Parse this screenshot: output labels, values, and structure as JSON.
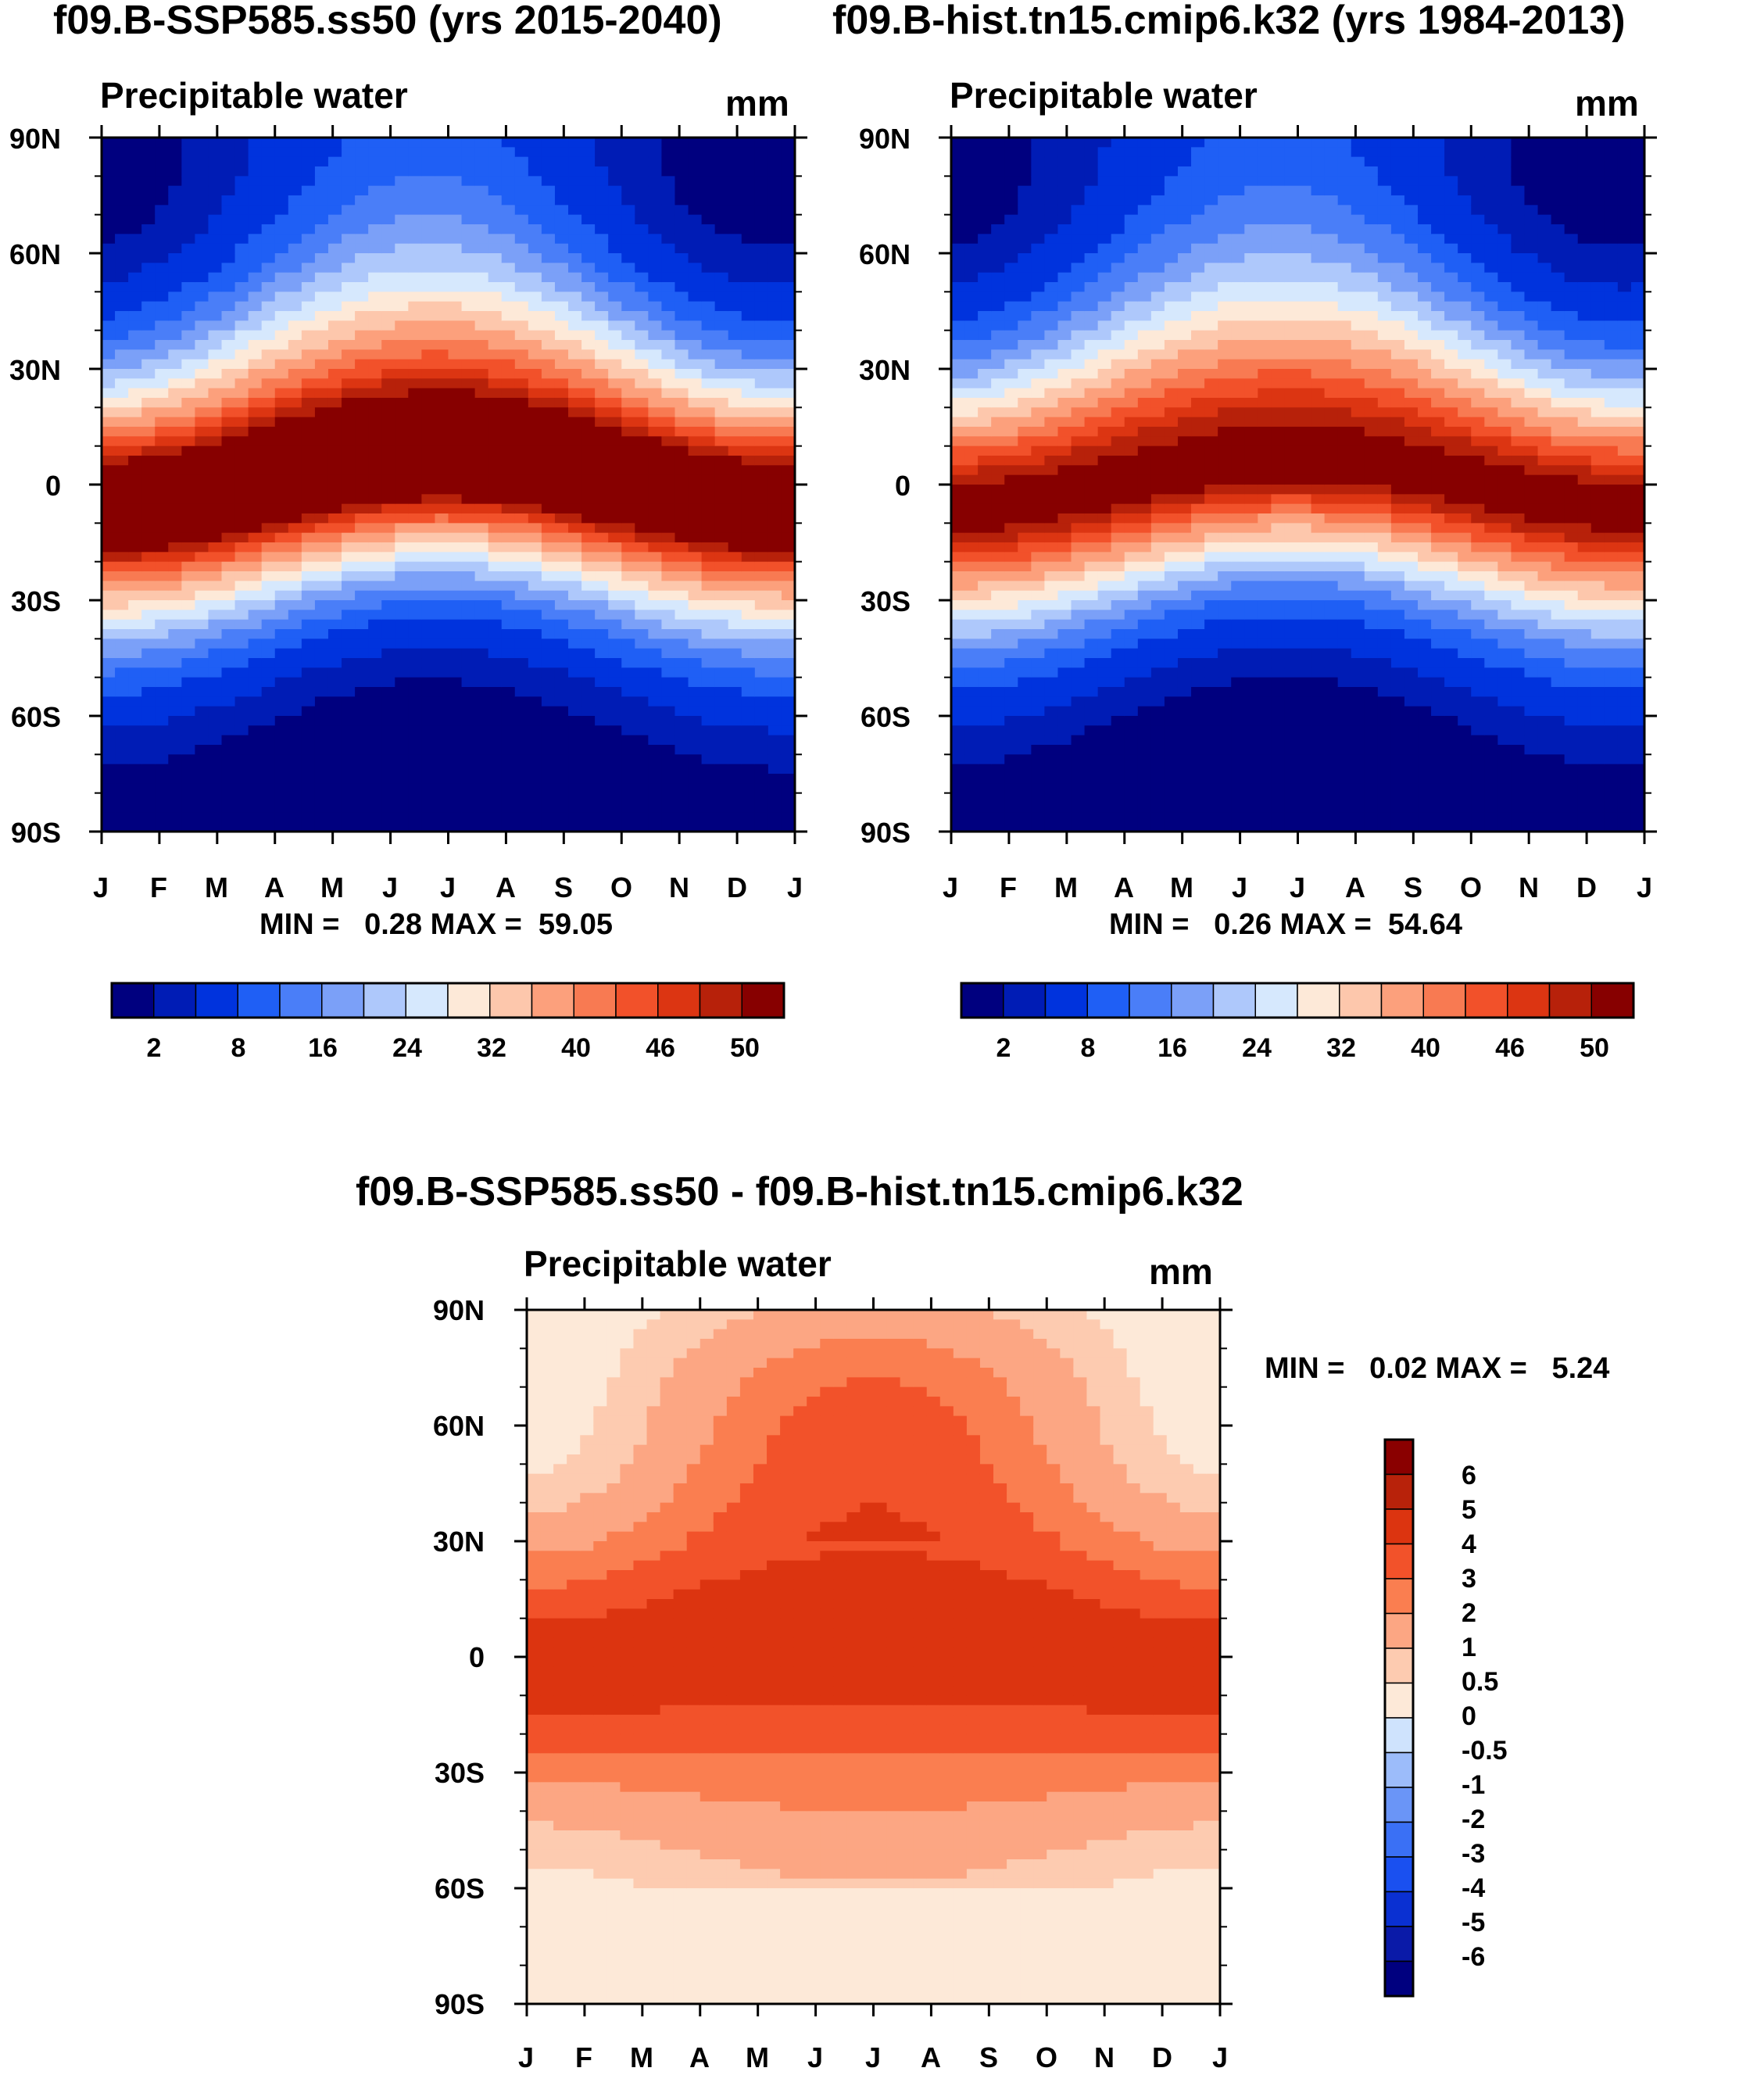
{
  "chart_data": [
    {
      "type": "heatmap",
      "title": "f09.B-SSP585.ss50 (yrs 2015-2040)",
      "subtitle": "Precipitable water",
      "units": "mm",
      "xlabel": "",
      "ylabel": "",
      "x_ticks": [
        "J",
        "F",
        "M",
        "A",
        "M",
        "J",
        "J",
        "A",
        "S",
        "O",
        "N",
        "D",
        "J"
      ],
      "y_ticks": [
        "90N",
        "60N",
        "30N",
        "0",
        "30S",
        "60S",
        "90S"
      ],
      "stats_text": "MIN =   0.28 MAX =  59.05",
      "min": 0.28,
      "max": 59.05,
      "colorbar_ticks": [
        "2",
        "8",
        "16",
        "24",
        "32",
        "40",
        "46",
        "50"
      ],
      "equator_peak": 56,
      "itcz_amplitude_deg": 12
    },
    {
      "type": "heatmap",
      "title": "f09.B-hist.tn15.cmip6.k32 (yrs 1984-2013)",
      "subtitle": "Precipitable water",
      "units": "mm",
      "xlabel": "",
      "ylabel": "",
      "x_ticks": [
        "J",
        "F",
        "M",
        "A",
        "M",
        "J",
        "J",
        "A",
        "S",
        "O",
        "N",
        "D",
        "J"
      ],
      "y_ticks": [
        "90N",
        "60N",
        "30N",
        "0",
        "30S",
        "60S",
        "90S"
      ],
      "stats_text": "MIN =   0.26 MAX =  54.64",
      "min": 0.26,
      "max": 54.64,
      "colorbar_ticks": [
        "2",
        "8",
        "16",
        "24",
        "32",
        "40",
        "46",
        "50"
      ],
      "equator_peak": 51.5,
      "itcz_amplitude_deg": 12
    },
    {
      "type": "heatmap",
      "title": "f09.B-SSP585.ss50 - f09.B-hist.tn15.cmip6.k32",
      "subtitle": "Precipitable water",
      "units": "mm",
      "xlabel": "",
      "ylabel": "",
      "x_ticks": [
        "J",
        "F",
        "M",
        "A",
        "M",
        "J",
        "J",
        "A",
        "S",
        "O",
        "N",
        "D",
        "J"
      ],
      "y_ticks": [
        "90N",
        "60N",
        "30N",
        "0",
        "30S",
        "60S",
        "90S"
      ],
      "stats_text": "MIN =   0.02 MAX =   5.24",
      "min": 0.02,
      "max": 5.24,
      "colorbar_ticks": [
        "6",
        "5",
        "4",
        "3",
        "2",
        "1",
        "0.5",
        "0",
        "-0.5",
        "-1",
        "-2",
        "-3",
        "-4",
        "-5",
        "-6"
      ]
    }
  ],
  "colors": {
    "absolute_levels": [
      "#00007f",
      "#001cb5",
      "#0033dd",
      "#1f5ff5",
      "#4a7ef8",
      "#7ba0f8",
      "#aec8fb",
      "#d6e8fd",
      "#fde9d8",
      "#fdc7ac",
      "#fca07c",
      "#f87a52",
      "#f2512a",
      "#dc3512",
      "#b7210a",
      "#870000"
    ],
    "diff_levels": [
      "#00007f",
      "#0a1aa8",
      "#0a30d2",
      "#1a50f0",
      "#3a70f5",
      "#6a95f7",
      "#9cbcfa",
      "#cfe3fd",
      "#fde9d8",
      "#fdcbb0",
      "#fca683",
      "#fa7e50",
      "#f2522a",
      "#dc3410",
      "#b8220a",
      "#8a0000"
    ]
  }
}
